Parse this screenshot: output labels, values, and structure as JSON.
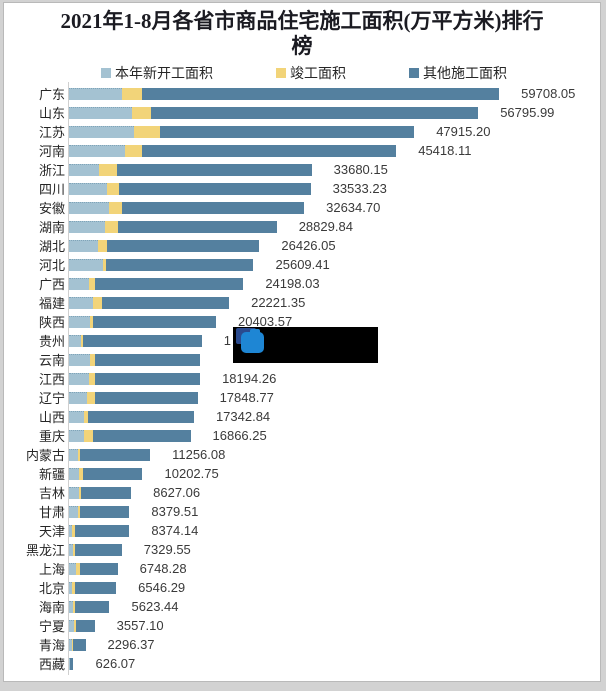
{
  "title": {
    "line1": "2021年1-8月各省市商品住宅施工面积(万平方米)排行",
    "line2": "榜",
    "full": "2021年1-8月各省市商品住宅施工面积(万平方米)排行榜"
  },
  "legend": [
    {
      "label": "本年新开工面积",
      "color": "#a4c2d2"
    },
    {
      "label": "竣工面积",
      "color": "#f2d479"
    },
    {
      "label": "其他施工面积",
      "color": "#54809f"
    }
  ],
  "chart_data": {
    "type": "bar",
    "orientation": "horizontal-stacked",
    "title": "2021年1-8月各省市商品住宅施工面积(万平方米)排行榜",
    "unit": "万平方米",
    "legend_position": "top",
    "grid": false,
    "categories": [
      "广东",
      "山东",
      "江苏",
      "河南",
      "浙江",
      "四川",
      "安徽",
      "湖南",
      "湖北",
      "河北",
      "广西",
      "福建",
      "陕西",
      "贵州",
      "云南",
      "江西",
      "辽宁",
      "山西",
      "重庆",
      "内蒙古",
      "新疆",
      "吉林",
      "甘肃",
      "天津",
      "黑龙江",
      "上海",
      "北京",
      "海南",
      "宁夏",
      "青海",
      "西藏"
    ],
    "series": [
      {
        "name": "本年新开工面积",
        "color": "#a4c2d2",
        "values": [
          7412,
          8744,
          8980,
          7773,
          4206,
          5233,
          5552,
          4997,
          4081,
          4775,
          2832,
          3290,
          2915,
          1721,
          2915,
          2832,
          2457,
          2082,
          2082,
          1249,
          1388,
          1388,
          1249,
          416,
          555,
          971,
          416,
          555,
          694,
          416,
          139
        ]
      },
      {
        "name": "竣工面积",
        "color": "#f2d479",
        "values": [
          2679,
          2637,
          3692,
          2360,
          2457,
          1749,
          1804,
          1860,
          1249,
          319,
          833,
          1291,
          472,
          278,
          694,
          777,
          1152,
          611,
          1249,
          278,
          555,
          278,
          278,
          416,
          278,
          555,
          416,
          278,
          278,
          139,
          69
        ]
      },
      {
        "name": "其他施工面积",
        "color": "#54809f",
        "values": [
          49617.05,
          45414.99,
          35243.2,
          35285.11,
          27017.15,
          26551.23,
          25278.7,
          21972.84,
          21096.05,
          20515.41,
          20533.03,
          17640.35,
          17016.57,
          16421.0,
          14641.0,
          14585.26,
          14239.77,
          14649.84,
          13535.25,
          9729.08,
          8259.75,
          6961.06,
          6852.51,
          7542.14,
          6496.55,
          5222.28,
          5714.29,
          4790.44,
          2585.1,
          1741.37,
          418.07
        ]
      }
    ],
    "totals": [
      59708.05,
      56795.99,
      47915.2,
      45418.11,
      33680.15,
      33533.23,
      32634.7,
      28829.84,
      26426.05,
      25609.41,
      24198.03,
      22221.35,
      20403.57,
      18420,
      18250,
      18194.26,
      17848.77,
      17342.84,
      16866.25,
      11256.08,
      10202.75,
      8627.06,
      8379.51,
      8374.14,
      7329.55,
      6748.28,
      6546.29,
      5623.44,
      3557.1,
      2296.37,
      626.07
    ],
    "value_labels": [
      "59708.05",
      "56795.99",
      "47915.20",
      "45418.11",
      "33680.15",
      "33533.23",
      "32634.70",
      "28829.84",
      "26426.05",
      "25609.41",
      "24198.03",
      "22221.35",
      "20403.57",
      "1",
      "",
      "18194.26",
      "17848.77",
      "17342.84",
      "16866.25",
      "11256.08",
      "10202.75",
      "8627.06",
      "8379.51",
      "8374.14",
      "7329.55",
      "6748.28",
      "6546.29",
      "5623.44",
      "3557.10",
      "2296.37",
      "626.07"
    ],
    "obscured_rows": [
      "贵州",
      "云南"
    ],
    "xlim": [
      0,
      62000
    ]
  },
  "overlay": {
    "type": "redaction-box",
    "color": "#000000",
    "icon": "blue-cursor-icon",
    "icon_colors": {
      "back": "#2a4a8e",
      "front": "#1e86d4"
    }
  },
  "colors": {
    "panel_bg": "#ffffff",
    "frame_bg": "#d2d2d2",
    "axis": "#cfcfcf",
    "text": "#262626"
  }
}
